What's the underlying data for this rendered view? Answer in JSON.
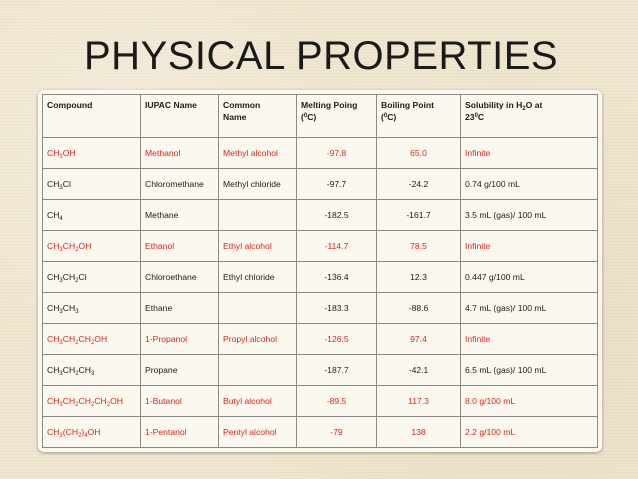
{
  "slide": {
    "title": "PHYSICAL PROPERTIES"
  },
  "colors": {
    "background": "#efe6cf",
    "highlight_text": "#e0241b",
    "normal_text": "#1c1c1c"
  },
  "table": {
    "headers": {
      "compound": "Compound",
      "iupac": "IUPAC Name",
      "common_line1": "Common",
      "common_line2": "Name",
      "melting_line1": "Melting Poing",
      "melting_line2_pre": "(",
      "melting_line2_sup": "0",
      "melting_line2_post": "C)",
      "boiling_line1": "Boiling Point",
      "boiling_line2_pre": "(",
      "boiling_line2_sup": "0",
      "boiling_line2_post": "C)",
      "solubility_line1_pre": "Solubility in H",
      "solubility_line1_sub": "2",
      "solubility_line1_post": "O at",
      "solubility_line2_pre": "23",
      "solubility_line2_sup": "0",
      "solubility_line2_post": "C"
    },
    "rows": [
      {
        "highlight": true,
        "formula": [
          [
            "CH",
            "3"
          ],
          [
            "OH",
            ""
          ]
        ],
        "iupac": "Methanol",
        "common": "Methyl alcohol",
        "mp": "-97.8",
        "bp": "65.0",
        "solubility": "Infinite"
      },
      {
        "highlight": false,
        "formula": [
          [
            "CH",
            "3"
          ],
          [
            "Cl",
            ""
          ]
        ],
        "iupac": "Chloromethane",
        "common": "Methyl chloride",
        "mp": "-97.7",
        "bp": "-24.2",
        "solubility": "0.74 g/100 mL"
      },
      {
        "highlight": false,
        "formula": [
          [
            "CH",
            "4"
          ]
        ],
        "iupac": "Methane",
        "common": "",
        "mp": "-182.5",
        "bp": "-161.7",
        "solubility": "3.5 mL (gas)/ 100 mL"
      },
      {
        "highlight": true,
        "formula": [
          [
            "CH",
            "3"
          ],
          [
            "CH",
            "2"
          ],
          [
            "OH",
            ""
          ]
        ],
        "iupac": "Ethanol",
        "common": "Ethyl alcohol",
        "mp": "-114.7",
        "bp": "78.5",
        "solubility": "Infinite"
      },
      {
        "highlight": false,
        "formula": [
          [
            "CH",
            "3"
          ],
          [
            "CH",
            "2"
          ],
          [
            "Cl",
            ""
          ]
        ],
        "iupac": "Chloroethane",
        "common": "Ethyl chloride",
        "mp": "-136.4",
        "bp": "12.3",
        "solubility": "0.447 g/100 mL"
      },
      {
        "highlight": false,
        "formula": [
          [
            "CH",
            "3"
          ],
          [
            "CH",
            "3"
          ]
        ],
        "iupac": "Ethane",
        "common": "",
        "mp": "-183.3",
        "bp": "-88.6",
        "solubility": "4.7 mL (gas)/ 100 mL"
      },
      {
        "highlight": true,
        "formula": [
          [
            "CH",
            "3"
          ],
          [
            "CH",
            "2"
          ],
          [
            "CH",
            "2"
          ],
          [
            "OH",
            ""
          ]
        ],
        "iupac": "1-Propanol",
        "common": "Propyl alcohol",
        "mp": "-126.5",
        "bp": "97.4",
        "solubility": "Infinite"
      },
      {
        "highlight": false,
        "formula": [
          [
            "CH",
            "3"
          ],
          [
            "CH",
            "2"
          ],
          [
            "CH",
            "3"
          ]
        ],
        "iupac": "Propane",
        "common": "",
        "mp": "-187.7",
        "bp": "-42.1",
        "solubility": "6.5 mL (gas)/ 100 mL"
      },
      {
        "highlight": true,
        "formula": [
          [
            "CH",
            "3"
          ],
          [
            "CH",
            "2"
          ],
          [
            "CH",
            "2"
          ],
          [
            "CH",
            "2"
          ],
          [
            "OH",
            ""
          ]
        ],
        "iupac": "1-Butanol",
        "common": "Butyl alcohol",
        "mp": "-89.5",
        "bp": "117.3",
        "solubility": "8.0 g/100 mL"
      },
      {
        "highlight": true,
        "formula": [
          [
            "CH",
            "3"
          ],
          [
            "(CH",
            "2"
          ],
          [
            ")",
            "4"
          ],
          [
            "OH",
            ""
          ]
        ],
        "iupac": "1-Pentanol",
        "common": "Pentyl alcohol",
        "mp": "-79",
        "bp": "138",
        "solubility": "2.2 g/100 mL"
      }
    ]
  }
}
